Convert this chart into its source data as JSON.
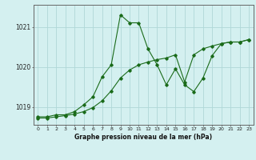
{
  "title": "Graphe pression niveau de la mer (hPa)",
  "bg_color": "#d4f0f0",
  "line_color": "#1a6b1a",
  "grid_color": "#b0d8d8",
  "axis_color": "#666666",
  "xlim": [
    -0.5,
    23.5
  ],
  "ylim": [
    1018.55,
    1021.55
  ],
  "yticks": [
    1019,
    1020,
    1021
  ],
  "xticks": [
    0,
    1,
    2,
    3,
    4,
    5,
    6,
    7,
    8,
    9,
    10,
    11,
    12,
    13,
    14,
    15,
    16,
    17,
    18,
    19,
    20,
    21,
    22,
    23
  ],
  "series1_x": [
    0,
    1,
    2,
    3,
    4,
    5,
    6,
    7,
    8,
    9,
    10,
    11,
    12,
    13,
    14,
    15,
    16,
    17,
    18,
    19,
    20,
    21,
    22,
    23
  ],
  "series1_y": [
    1018.75,
    1018.75,
    1018.8,
    1018.8,
    1018.88,
    1019.05,
    1019.25,
    1019.75,
    1020.05,
    1021.3,
    1021.1,
    1021.1,
    1020.45,
    1020.05,
    1019.55,
    1019.95,
    1019.55,
    1019.38,
    1019.72,
    1020.28,
    1020.58,
    1020.62,
    1020.62,
    1020.68
  ],
  "series2_x": [
    0,
    1,
    2,
    3,
    4,
    5,
    6,
    7,
    8,
    9,
    10,
    11,
    12,
    13,
    14,
    15,
    16,
    17,
    18,
    19,
    20,
    21,
    22,
    23
  ],
  "series2_y": [
    1018.72,
    1018.72,
    1018.75,
    1018.78,
    1018.82,
    1018.88,
    1018.98,
    1019.15,
    1019.4,
    1019.72,
    1019.92,
    1020.05,
    1020.12,
    1020.18,
    1020.22,
    1020.3,
    1019.62,
    1020.3,
    1020.45,
    1020.52,
    1020.58,
    1020.62,
    1020.62,
    1020.68
  ]
}
